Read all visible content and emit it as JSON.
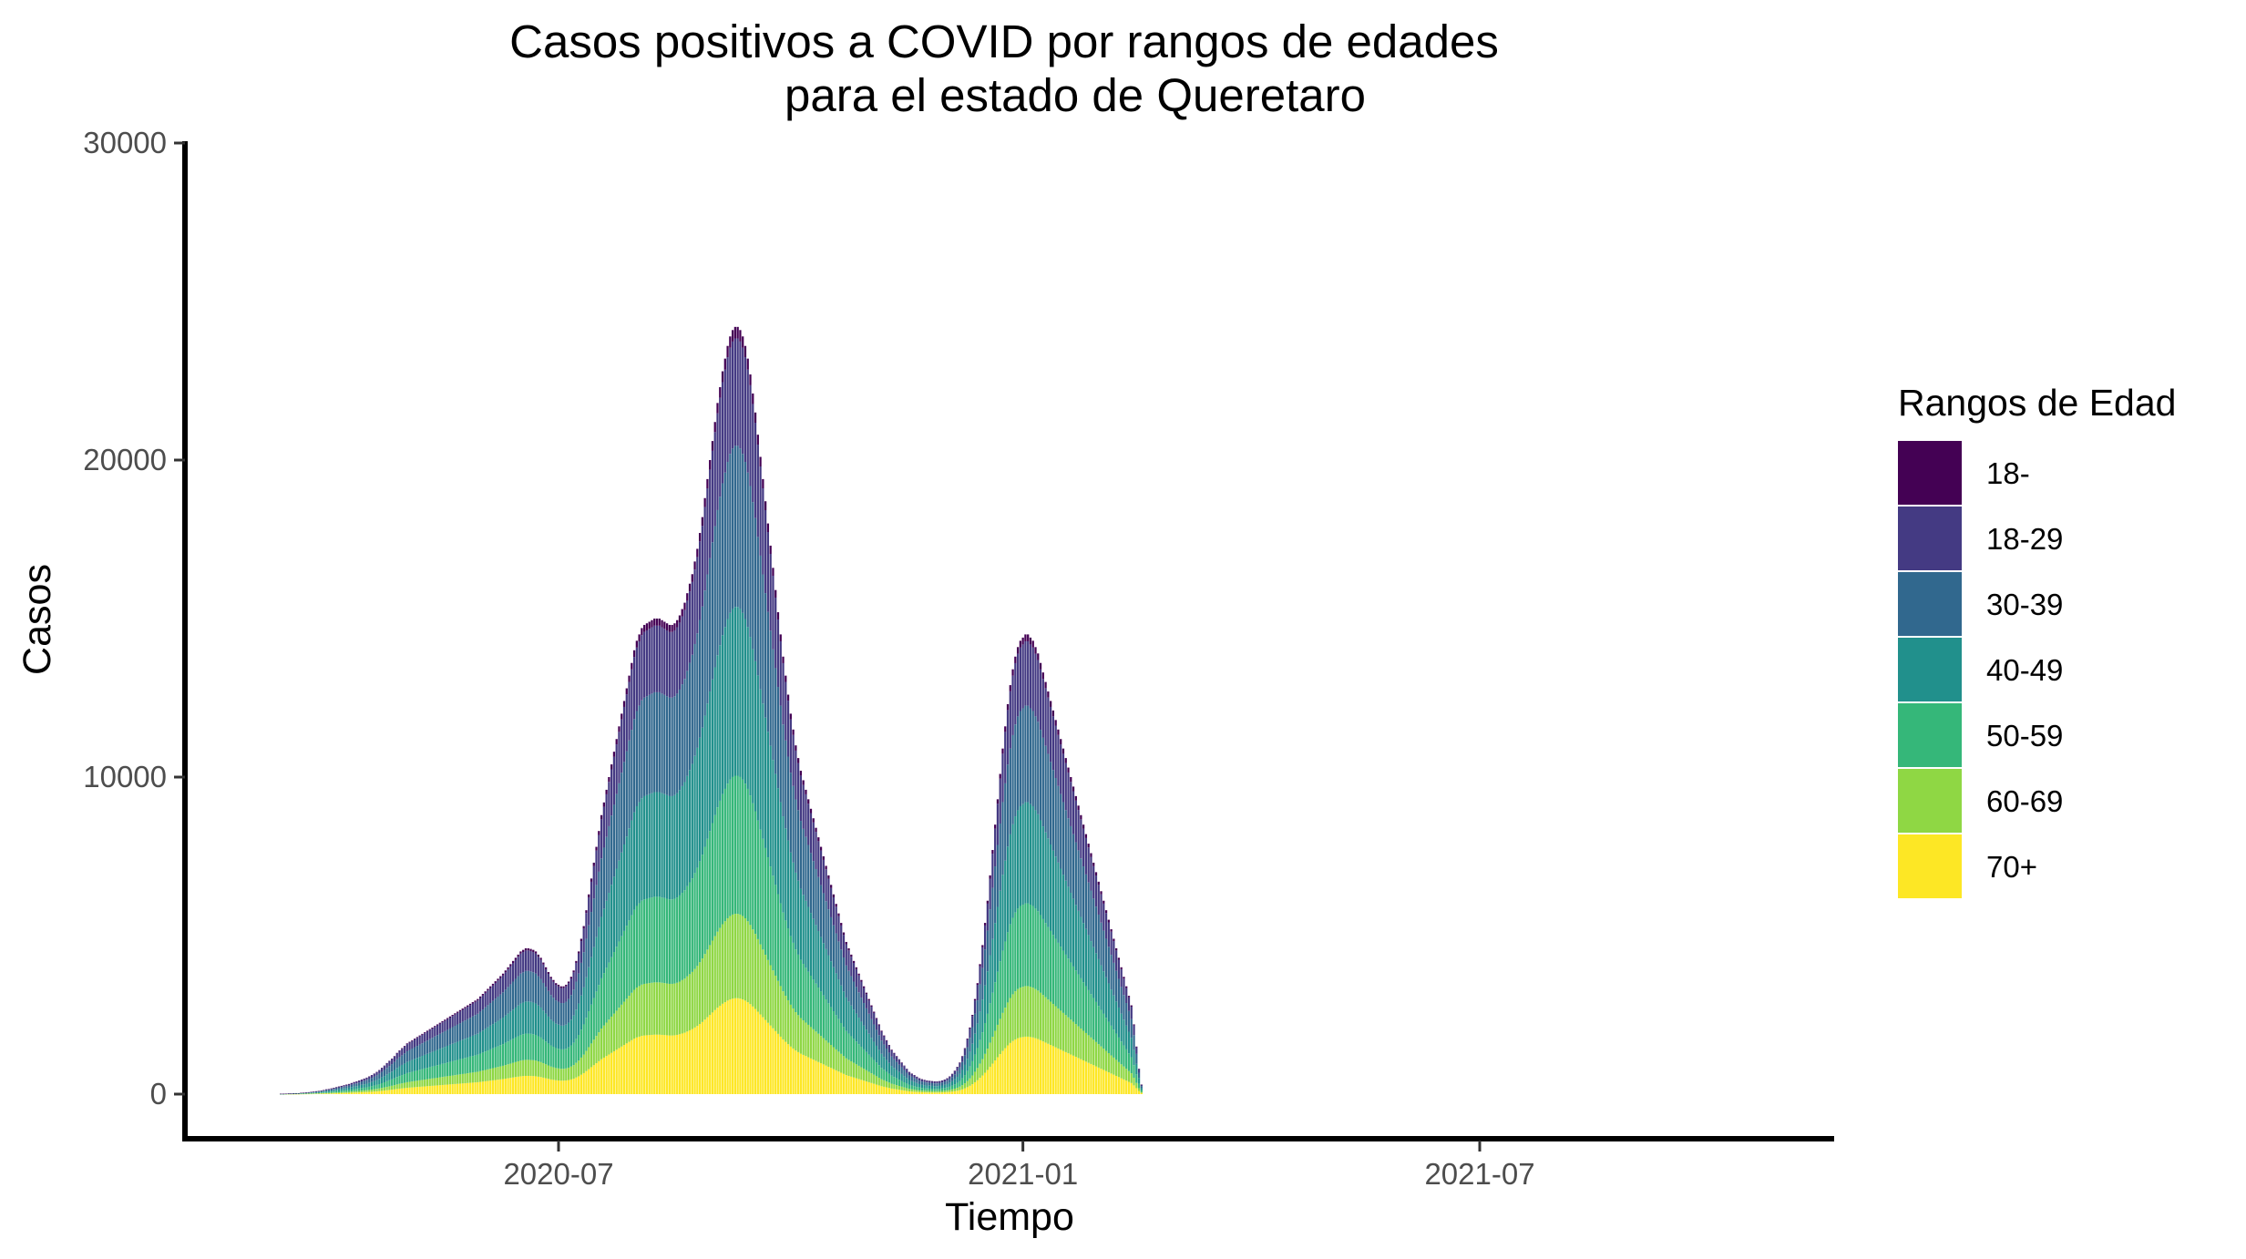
{
  "chart_data": {
    "type": "bar",
    "stacked": true,
    "title": "Casos positivos a COVID por rangos de edades",
    "subtitle": "para el estado de Queretaro",
    "xlabel": "Tiempo",
    "ylabel": "Casos",
    "ylim": [
      0,
      30000
    ],
    "xlim": [
      "2020-03-01",
      "2021-10-31"
    ],
    "y_ticks": [
      0,
      10000,
      20000,
      30000
    ],
    "x_ticks": [
      {
        "date": "2020-07-01",
        "label": "2020-07"
      },
      {
        "date": "2021-01-01",
        "label": "2021-01"
      },
      {
        "date": "2021-07-01",
        "label": "2021-07"
      }
    ],
    "grid": false,
    "legend": {
      "title": "Rangos de Edad",
      "placement": "right",
      "entries": [
        "18-",
        "18-29",
        "30-39",
        "40-49",
        "50-59",
        "60-69",
        "70+"
      ]
    },
    "series_colors": {
      "18-": "#440154",
      "18-29": "#443A83",
      "30-39": "#31688E",
      "40-49": "#21908C",
      "50-59": "#35B779",
      "60-69": "#8FD744",
      "70+": "#FDE725"
    },
    "age_shares": [
      0.015,
      0.14,
      0.21,
      0.22,
      0.18,
      0.11,
      0.125
    ],
    "start_date": "2020-03-01",
    "daily_totals": [
      0,
      0,
      0,
      0,
      0,
      0,
      0,
      0,
      0,
      0,
      0,
      0,
      10,
      10,
      15,
      20,
      20,
      25,
      30,
      30,
      40,
      45,
      50,
      60,
      70,
      80,
      90,
      100,
      115,
      130,
      150,
      160,
      180,
      200,
      220,
      240,
      260,
      280,
      300,
      320,
      350,
      380,
      400,
      430,
      460,
      490,
      520,
      560,
      600,
      650,
      700,
      760,
      830,
      900,
      980,
      1050,
      1120,
      1200,
      1300,
      1380,
      1450,
      1520,
      1600,
      1650,
      1700,
      1750,
      1800,
      1850,
      1900,
      1950,
      2000,
      2050,
      2100,
      2150,
      2200,
      2250,
      2300,
      2350,
      2400,
      2450,
      2500,
      2550,
      2600,
      2650,
      2700,
      2750,
      2800,
      2850,
      2900,
      2950,
      3000,
      3080,
      3160,
      3240,
      3320,
      3400,
      3480,
      3560,
      3640,
      3720,
      3800,
      3900,
      4000,
      4100,
      4200,
      4300,
      4400,
      4500,
      4550,
      4600,
      4600,
      4580,
      4550,
      4500,
      4400,
      4300,
      4150,
      4000,
      3850,
      3700,
      3600,
      3500,
      3450,
      3400,
      3400,
      3450,
      3550,
      3700,
      3900,
      4200,
      4500,
      4900,
      5300,
      5800,
      6300,
      6800,
      7300,
      7800,
      8300,
      8800,
      9200,
      9600,
      10000,
      10400,
      10800,
      11200,
      11600,
      12000,
      12400,
      12800,
      13200,
      13600,
      14000,
      14300,
      14500,
      14700,
      14800,
      14850,
      14900,
      14950,
      15000,
      15000,
      15000,
      14950,
      14900,
      14850,
      14800,
      14800,
      14850,
      14950,
      15100,
      15300,
      15500,
      15800,
      16100,
      16400,
      16800,
      17200,
      17700,
      18200,
      18800,
      19400,
      20000,
      20600,
      21200,
      21800,
      22300,
      22800,
      23200,
      23600,
      23900,
      24100,
      24200,
      24200,
      24100,
      23900,
      23600,
      23200,
      22700,
      22100,
      21500,
      20800,
      20100,
      19400,
      18700,
      18000,
      17300,
      16600,
      15900,
      15200,
      14500,
      13800,
      13200,
      12600,
      12000,
      11500,
      11000,
      10600,
      10200,
      9900,
      9600,
      9300,
      9000,
      8700,
      8400,
      8100,
      7800,
      7500,
      7200,
      6900,
      6600,
      6300,
      6000,
      5700,
      5400,
      5100,
      4800,
      4600,
      4400,
      4200,
      4000,
      3800,
      3600,
      3400,
      3200,
      3000,
      2800,
      2600,
      2400,
      2200,
      2000,
      1850,
      1700,
      1550,
      1400,
      1300,
      1200,
      1100,
      1000,
      900,
      800,
      700,
      650,
      600,
      550,
      500,
      470,
      450,
      430,
      420,
      410,
      400,
      400,
      410,
      430,
      460,
      500,
      560,
      640,
      740,
      860,
      1000,
      1200,
      1450,
      1750,
      2100,
      2500,
      3000,
      3500,
      4100,
      4700,
      5400,
      6100,
      6900,
      7700,
      8500,
      9300,
      10100,
      10900,
      11600,
      12300,
      12900,
      13400,
      13800,
      14100,
      14300,
      14400,
      14500,
      14500,
      14400,
      14300,
      14100,
      13900,
      13600,
      13300,
      13000,
      12700,
      12400,
      12100,
      11800,
      11500,
      11200,
      10900,
      10600,
      10300,
      10000,
      9700,
      9400,
      9100,
      8800,
      8500,
      8200,
      7900,
      7600,
      7300,
      7000,
      6700,
      6400,
      6100,
      5800,
      5500,
      5200,
      4900,
      4600,
      4300,
      4000,
      3700,
      3400,
      3100,
      2800,
      2200,
      1500,
      800,
      300
    ]
  }
}
